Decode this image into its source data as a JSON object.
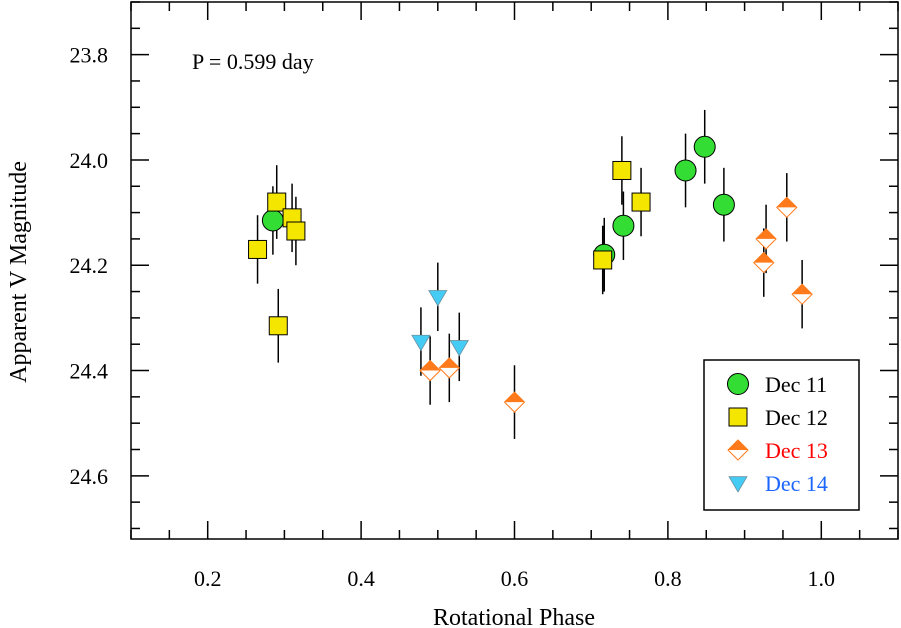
{
  "chart_data": {
    "type": "scatter",
    "title": "",
    "xlabel": "Rotational Phase",
    "ylabel": "Apparent V Magnitude",
    "xlim": [
      0.1,
      1.1
    ],
    "ylim": [
      24.72,
      23.7
    ],
    "y_inverted": true,
    "x_major_ticks": [
      0.2,
      0.4,
      0.6,
      0.8,
      1.0
    ],
    "x_tick_labels": [
      "0.2",
      "0.4",
      "0.6",
      "0.8",
      "1.0"
    ],
    "x_minor_step": 0.05,
    "y_major_ticks": [
      23.8,
      24.0,
      24.2,
      24.4,
      24.6
    ],
    "y_tick_labels": [
      "23.8",
      "24.0",
      "24.2",
      "24.4",
      "24.6"
    ],
    "y_minor_step": 0.05,
    "grid": false,
    "annotation": "P = 0.599 day",
    "legend_position": "bottom-right",
    "series": [
      {
        "name": "Dec 11",
        "marker": "circle",
        "color": "#33dd33",
        "label_color": "#000000",
        "points": [
          {
            "x": 0.285,
            "y": 24.115,
            "err": 0.065
          },
          {
            "x": 0.717,
            "y": 24.18,
            "err": 0.07
          },
          {
            "x": 0.742,
            "y": 24.125,
            "err": 0.065
          },
          {
            "x": 0.823,
            "y": 24.02,
            "err": 0.07
          },
          {
            "x": 0.848,
            "y": 23.975,
            "err": 0.07
          },
          {
            "x": 0.873,
            "y": 24.085,
            "err": 0.07
          }
        ]
      },
      {
        "name": "Dec 12",
        "marker": "square",
        "color": "#f5e600",
        "label_color": "#000000",
        "points": [
          {
            "x": 0.265,
            "y": 24.17,
            "err": 0.065
          },
          {
            "x": 0.29,
            "y": 24.08,
            "err": 0.07
          },
          {
            "x": 0.292,
            "y": 24.315,
            "err": 0.07
          },
          {
            "x": 0.31,
            "y": 24.11,
            "err": 0.065
          },
          {
            "x": 0.315,
            "y": 24.135,
            "err": 0.065
          },
          {
            "x": 0.715,
            "y": 24.19,
            "err": 0.065
          },
          {
            "x": 0.74,
            "y": 24.02,
            "err": 0.065
          },
          {
            "x": 0.765,
            "y": 24.08,
            "err": 0.065
          }
        ]
      },
      {
        "name": "Dec 13",
        "marker": "half-diamond",
        "color": "#ff7a1a",
        "label_color": "#ff0000",
        "points": [
          {
            "x": 0.49,
            "y": 24.4,
            "err": 0.065
          },
          {
            "x": 0.515,
            "y": 24.395,
            "err": 0.065
          },
          {
            "x": 0.6,
            "y": 24.46,
            "err": 0.07
          },
          {
            "x": 0.925,
            "y": 24.195,
            "err": 0.065
          },
          {
            "x": 0.928,
            "y": 24.15,
            "err": 0.065
          },
          {
            "x": 0.955,
            "y": 24.09,
            "err": 0.065
          },
          {
            "x": 0.975,
            "y": 24.255,
            "err": 0.065
          }
        ]
      },
      {
        "name": "Dec 14",
        "marker": "triangle-down",
        "color": "#44ccf5",
        "label_color": "#1a66ff",
        "points": [
          {
            "x": 0.478,
            "y": 24.345,
            "err": 0.065
          },
          {
            "x": 0.5,
            "y": 24.26,
            "err": 0.065
          },
          {
            "x": 0.528,
            "y": 24.355,
            "err": 0.065
          }
        ]
      }
    ]
  }
}
